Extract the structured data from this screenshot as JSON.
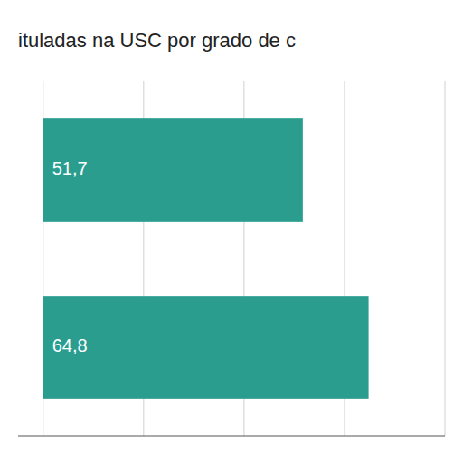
{
  "chart_data": {
    "type": "bar",
    "orientation": "horizontal",
    "title": "ituladas na USC por grado de c",
    "categories": [
      null,
      null
    ],
    "values": [
      64.8,
      51.7
    ],
    "value_labels": [
      "64,8",
      "51,7"
    ],
    "data_labels": true,
    "color": "#2a9d8f",
    "xlim": [
      -5,
      80
    ],
    "xticks": [
      0,
      20,
      40,
      60,
      80
    ],
    "grid": true,
    "tick_labels": false
  }
}
